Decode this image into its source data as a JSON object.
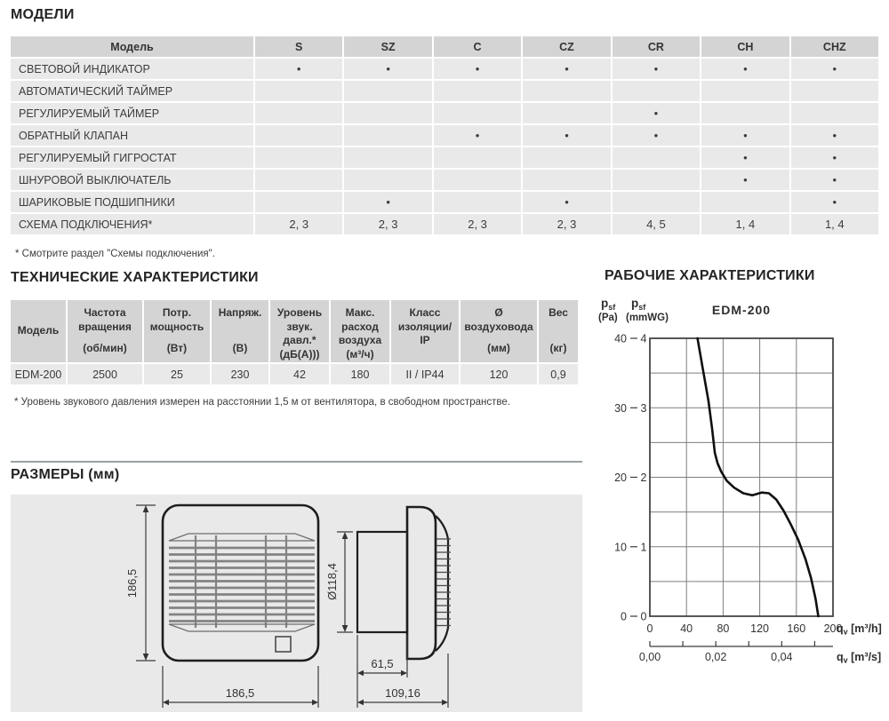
{
  "models": {
    "title": "МОДЕЛИ",
    "columns": [
      "Модель",
      "S",
      "SZ",
      "C",
      "CZ",
      "CR",
      "CH",
      "CHZ"
    ],
    "rows": [
      {
        "label": "СВЕТОВОЙ ИНДИКАТОР",
        "cells": [
          "•",
          "•",
          "•",
          "•",
          "•",
          "•",
          "•"
        ]
      },
      {
        "label": "АВТОМАТИЧЕСКИЙ ТАЙМЕР",
        "cells": [
          "",
          "",
          "",
          "",
          "",
          "",
          ""
        ]
      },
      {
        "label": "РЕГУЛИРУЕМЫЙ ТАЙМЕР",
        "cells": [
          "",
          "",
          "",
          "",
          "•",
          "",
          ""
        ]
      },
      {
        "label": "ОБРАТНЫЙ КЛАПАН",
        "cells": [
          "",
          "",
          "•",
          "•",
          "•",
          "•",
          "•"
        ]
      },
      {
        "label": "РЕГУЛИРУЕМЫЙ ГИГРОСТАТ",
        "cells": [
          "",
          "",
          "",
          "",
          "",
          "•",
          "•"
        ]
      },
      {
        "label": "ШНУРОВОЙ ВЫКЛЮЧАТЕЛЬ",
        "cells": [
          "",
          "",
          "",
          "",
          "",
          "•",
          "•"
        ]
      },
      {
        "label": "ШАРИКОВЫЕ ПОДШИПНИКИ",
        "cells": [
          "",
          "•",
          "",
          "•",
          "",
          "",
          "•"
        ]
      },
      {
        "label": "СХЕМА ПОДКЛЮЧЕНИЯ*",
        "cells": [
          "2, 3",
          "2, 3",
          "2, 3",
          "2, 3",
          "4, 5",
          "1, 4",
          "1, 4"
        ]
      }
    ],
    "footnote": "* Смотрите раздел \"Схемы подключения\"."
  },
  "tech": {
    "title": "ТЕХНИЧЕСКИЕ ХАРАКТЕРИСТИКИ",
    "columns": [
      {
        "name": "Модель",
        "unit": ""
      },
      {
        "name": "Частота вращения",
        "unit": "(об/мин)"
      },
      {
        "name": "Потр. мощность",
        "unit": "(Вт)"
      },
      {
        "name": "Напряж.",
        "unit": "(В)"
      },
      {
        "name": "Уровень звук. давл.*",
        "unit": "(дБ(А)))"
      },
      {
        "name": "Макс. расход воздуха",
        "unit": "(м³/ч)"
      },
      {
        "name": "Класс изоляции/ IP",
        "unit": ""
      },
      {
        "name": "Ø воздуховода",
        "unit": "(мм)"
      },
      {
        "name": "Вес",
        "unit": "(кг)"
      }
    ],
    "row": [
      "EDM-200",
      "2500",
      "25",
      "230",
      "42",
      "180",
      "II / IP44",
      "120",
      "0,9"
    ],
    "footnote": "* Уровень звукового давления измерен на расстоянии 1,5 м от вентилятора, в свободном пространстве."
  },
  "dimensions": {
    "title": "РАЗМЕРЫ (мм)",
    "front_height": "186,5",
    "front_width": "186,5",
    "duct_diameter": "Ø118,4",
    "duct_length": "61,5",
    "total_depth": "109,16"
  },
  "performance": {
    "title": "РАБОЧИЕ ХАРАКТЕРИСТИКИ"
  },
  "chart_data": {
    "type": "line",
    "title": "EDM-200",
    "grid": {
      "x_step_m3h": 40,
      "y_step_pa": 5
    },
    "y_axis_pa": {
      "sym": "p",
      "sym_sub": "sf",
      "unit": "(Pa)",
      "ticks": [
        40,
        30,
        20,
        10,
        0
      ],
      "range": [
        0,
        40
      ]
    },
    "y_axis_mmwg": {
      "sym": "p",
      "sym_sub": "sf",
      "unit": "(mmWG)",
      "ticks": [
        4,
        3,
        2,
        1,
        0
      ],
      "range": [
        0,
        4
      ]
    },
    "x_axis_m3h": {
      "ticks": [
        0,
        40,
        80,
        120,
        160,
        200
      ],
      "range": [
        0,
        200
      ],
      "caption_q": "q",
      "caption_sub": "v",
      "caption_unit": " [m³/h]"
    },
    "x_axis_m3s": {
      "tick_positions_m3h": [
        0,
        36,
        72,
        108,
        144,
        180
      ],
      "tick_labels": [
        "0,00",
        "",
        "0,02",
        "",
        "0,04",
        ""
      ],
      "caption_q": "q",
      "caption_sub": "v",
      "caption_unit": " [m³/s]"
    },
    "series": [
      {
        "name": "EDM-200",
        "points_m3h_pa": [
          [
            52,
            40
          ],
          [
            58,
            35.5
          ],
          [
            64,
            31
          ],
          [
            68,
            27
          ],
          [
            71,
            23.5
          ],
          [
            74,
            22
          ],
          [
            78,
            20.8
          ],
          [
            84,
            19.5
          ],
          [
            92,
            18.5
          ],
          [
            102,
            17.7
          ],
          [
            112,
            17.4
          ],
          [
            122,
            17.8
          ],
          [
            130,
            17.7
          ],
          [
            138,
            16.8
          ],
          [
            146,
            15.2
          ],
          [
            154,
            13.2
          ],
          [
            162,
            11
          ],
          [
            170,
            8.2
          ],
          [
            176,
            5.5
          ],
          [
            181,
            2.5
          ],
          [
            184,
            0
          ]
        ]
      }
    ]
  }
}
